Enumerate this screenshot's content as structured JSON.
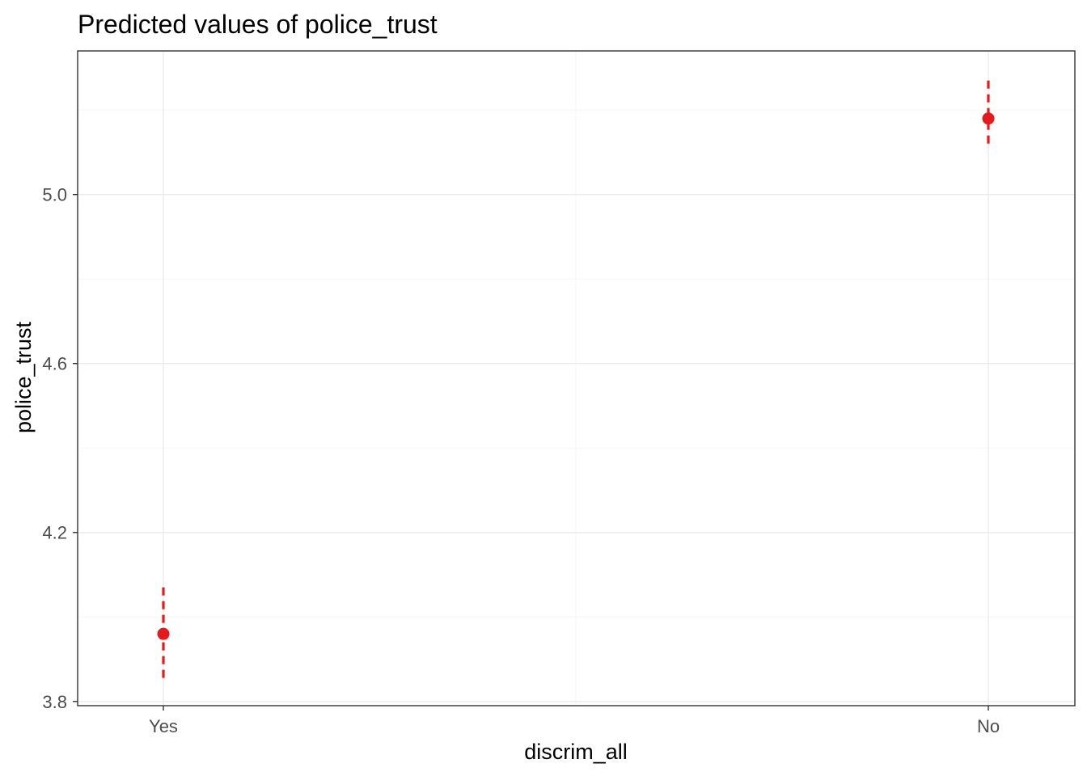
{
  "chart_data": {
    "type": "scatter",
    "title": "Predicted values of police_trust",
    "xlabel": "discrim_all",
    "ylabel": "police_trust",
    "categories": [
      "Yes",
      "No"
    ],
    "series": [
      {
        "values": [
          3.96,
          5.18
        ],
        "ci_low": [
          3.85,
          5.11
        ],
        "ci_high": [
          4.07,
          5.27
        ]
      }
    ],
    "ylim": [
      3.79,
      5.34
    ],
    "yticks": [
      3.8,
      4.2,
      4.6,
      5.0
    ],
    "ytick_labels": [
      "3.8",
      "4.2",
      "4.6",
      "5.0"
    ],
    "grid": true,
    "legend": "none",
    "color": "#e41a1c"
  }
}
